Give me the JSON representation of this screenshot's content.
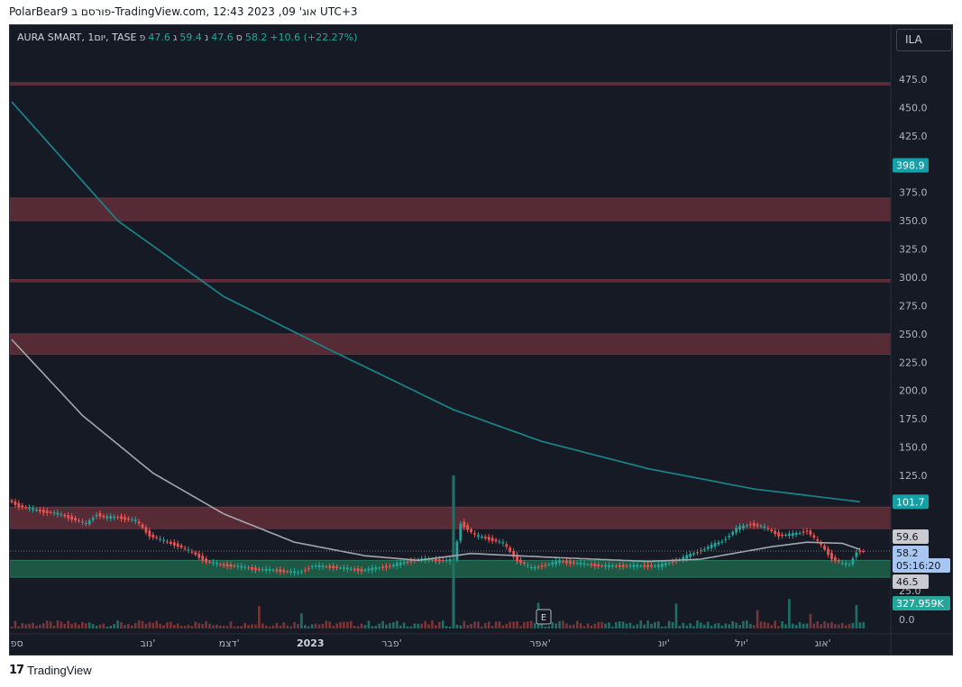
{
  "header": {
    "caption": "PolarBear9 פורסם ב-TradingView.com, אוג' 09, 2023 12:43 UTC+3"
  },
  "legend": {
    "symbol": "AURA SMART, 1יום, TASE",
    "open_label": "פ",
    "open": "47.6",
    "high_label": "ג",
    "high": "59.4",
    "low_label": "נ",
    "low": "47.6",
    "close_label": "ס",
    "close": "58.2",
    "change": "+10.6 (+22.27%)"
  },
  "currency_button": "ILA",
  "footer": {
    "logo_text": "TradingView",
    "logo_mark": "17"
  },
  "earnings_marker": "E",
  "colors": {
    "background": "#161a25",
    "up": "#26a69a",
    "down": "#ef5350",
    "zone_red": "#5a2c36",
    "zone_green": "#1d5c45",
    "ma_long": "#1b7f86",
    "ma_short": "#a3a6ad",
    "text": "#d1d4dc"
  },
  "chart_data": {
    "type": "candlestick",
    "y_axis": {
      "ticks": [
        "475.0",
        "450.0",
        "425.0",
        "400.0",
        "375.0",
        "350.0",
        "325.0",
        "300.0",
        "275.0",
        "250.0",
        "225.0",
        "200.0",
        "175.0",
        "150.0",
        "125.0",
        "25.0",
        "0.0"
      ],
      "labels": [
        {
          "text": "398.9",
          "value": 398.9,
          "kind": "ma_long"
        },
        {
          "text": "101.7",
          "value": 101.7,
          "kind": "ma_long"
        },
        {
          "text": "59.6",
          "value": 59.6,
          "kind": "ma_short"
        },
        {
          "text": "58.2",
          "value": 58.2,
          "kind": "price"
        },
        {
          "text": "05:16:20",
          "value": 58.2,
          "kind": "countdown"
        },
        {
          "text": "46.5",
          "value": 46.5,
          "kind": "ma_short"
        },
        {
          "text": "327.959K",
          "value": 0,
          "kind": "volume"
        }
      ]
    },
    "x_axis": {
      "labels": [
        {
          "text": "ספט",
          "i": 0
        },
        {
          "text": "נוב'",
          "i": 38
        },
        {
          "text": "דצמ'",
          "i": 61
        },
        {
          "text": "2023",
          "i": 84
        },
        {
          "text": "פבר'",
          "i": 107
        },
        {
          "text": "אפר'",
          "i": 149
        },
        {
          "text": "יונ'",
          "i": 184
        },
        {
          "text": "יול'",
          "i": 206
        },
        {
          "text": "אוג'",
          "i": 229
        }
      ],
      "count": 242
    },
    "zones": [
      {
        "color": "red",
        "from": 470,
        "to": 472
      },
      {
        "color": "red",
        "from": 350,
        "to": 370
      },
      {
        "color": "red",
        "from": 296,
        "to": 298
      },
      {
        "color": "red",
        "from": 232,
        "to": 250
      },
      {
        "color": "red",
        "from": 78,
        "to": 97
      },
      {
        "color": "green",
        "from": 35,
        "to": 50
      }
    ],
    "close_series": [
      {
        "i": 0,
        "v": 103
      },
      {
        "i": 3,
        "v": 98
      },
      {
        "i": 7,
        "v": 95
      },
      {
        "i": 10,
        "v": 93
      },
      {
        "i": 14,
        "v": 91
      },
      {
        "i": 18,
        "v": 87
      },
      {
        "i": 22,
        "v": 82
      },
      {
        "i": 25,
        "v": 91
      },
      {
        "i": 27,
        "v": 88
      },
      {
        "i": 31,
        "v": 88
      },
      {
        "i": 36,
        "v": 85
      },
      {
        "i": 40,
        "v": 72
      },
      {
        "i": 44,
        "v": 67
      },
      {
        "i": 48,
        "v": 63
      },
      {
        "i": 52,
        "v": 57
      },
      {
        "i": 56,
        "v": 49
      },
      {
        "i": 60,
        "v": 46
      },
      {
        "i": 64,
        "v": 45
      },
      {
        "i": 70,
        "v": 42
      },
      {
        "i": 76,
        "v": 41
      },
      {
        "i": 82,
        "v": 39
      },
      {
        "i": 86,
        "v": 45
      },
      {
        "i": 92,
        "v": 44
      },
      {
        "i": 100,
        "v": 41
      },
      {
        "i": 108,
        "v": 45
      },
      {
        "i": 116,
        "v": 51
      },
      {
        "i": 122,
        "v": 50
      },
      {
        "i": 126,
        "v": 50
      },
      {
        "i": 128,
        "v": 83
      },
      {
        "i": 132,
        "v": 72
      },
      {
        "i": 136,
        "v": 69
      },
      {
        "i": 140,
        "v": 65
      },
      {
        "i": 144,
        "v": 50
      },
      {
        "i": 148,
        "v": 43
      },
      {
        "i": 152,
        "v": 46
      },
      {
        "i": 156,
        "v": 49
      },
      {
        "i": 162,
        "v": 47
      },
      {
        "i": 168,
        "v": 45
      },
      {
        "i": 176,
        "v": 45
      },
      {
        "i": 184,
        "v": 45
      },
      {
        "i": 190,
        "v": 51
      },
      {
        "i": 196,
        "v": 59
      },
      {
        "i": 202,
        "v": 67
      },
      {
        "i": 206,
        "v": 78
      },
      {
        "i": 210,
        "v": 82
      },
      {
        "i": 214,
        "v": 79
      },
      {
        "i": 218,
        "v": 72
      },
      {
        "i": 222,
        "v": 73
      },
      {
        "i": 226,
        "v": 76
      },
      {
        "i": 230,
        "v": 63
      },
      {
        "i": 233,
        "v": 52
      },
      {
        "i": 236,
        "v": 47
      },
      {
        "i": 238,
        "v": 46
      },
      {
        "i": 240,
        "v": 58
      }
    ],
    "spike": {
      "i": 125,
      "high": 125,
      "low": 0
    },
    "ma_long": [
      {
        "i": 0,
        "v": 455
      },
      {
        "i": 30,
        "v": 350
      },
      {
        "i": 60,
        "v": 283
      },
      {
        "i": 90,
        "v": 236
      },
      {
        "i": 125,
        "v": 183
      },
      {
        "i": 150,
        "v": 155
      },
      {
        "i": 180,
        "v": 131
      },
      {
        "i": 210,
        "v": 113
      },
      {
        "i": 240,
        "v": 101.7
      }
    ],
    "ma_short": [
      {
        "i": 0,
        "v": 245
      },
      {
        "i": 20,
        "v": 178
      },
      {
        "i": 40,
        "v": 127
      },
      {
        "i": 60,
        "v": 91
      },
      {
        "i": 80,
        "v": 66
      },
      {
        "i": 100,
        "v": 54
      },
      {
        "i": 115,
        "v": 50
      },
      {
        "i": 130,
        "v": 56
      },
      {
        "i": 150,
        "v": 53
      },
      {
        "i": 180,
        "v": 49
      },
      {
        "i": 195,
        "v": 51
      },
      {
        "i": 215,
        "v": 62
      },
      {
        "i": 225,
        "v": 66
      },
      {
        "i": 235,
        "v": 65
      },
      {
        "i": 240,
        "v": 59.6
      }
    ],
    "volume_note": "volume bars shown at bottom with max label 327.959K"
  }
}
